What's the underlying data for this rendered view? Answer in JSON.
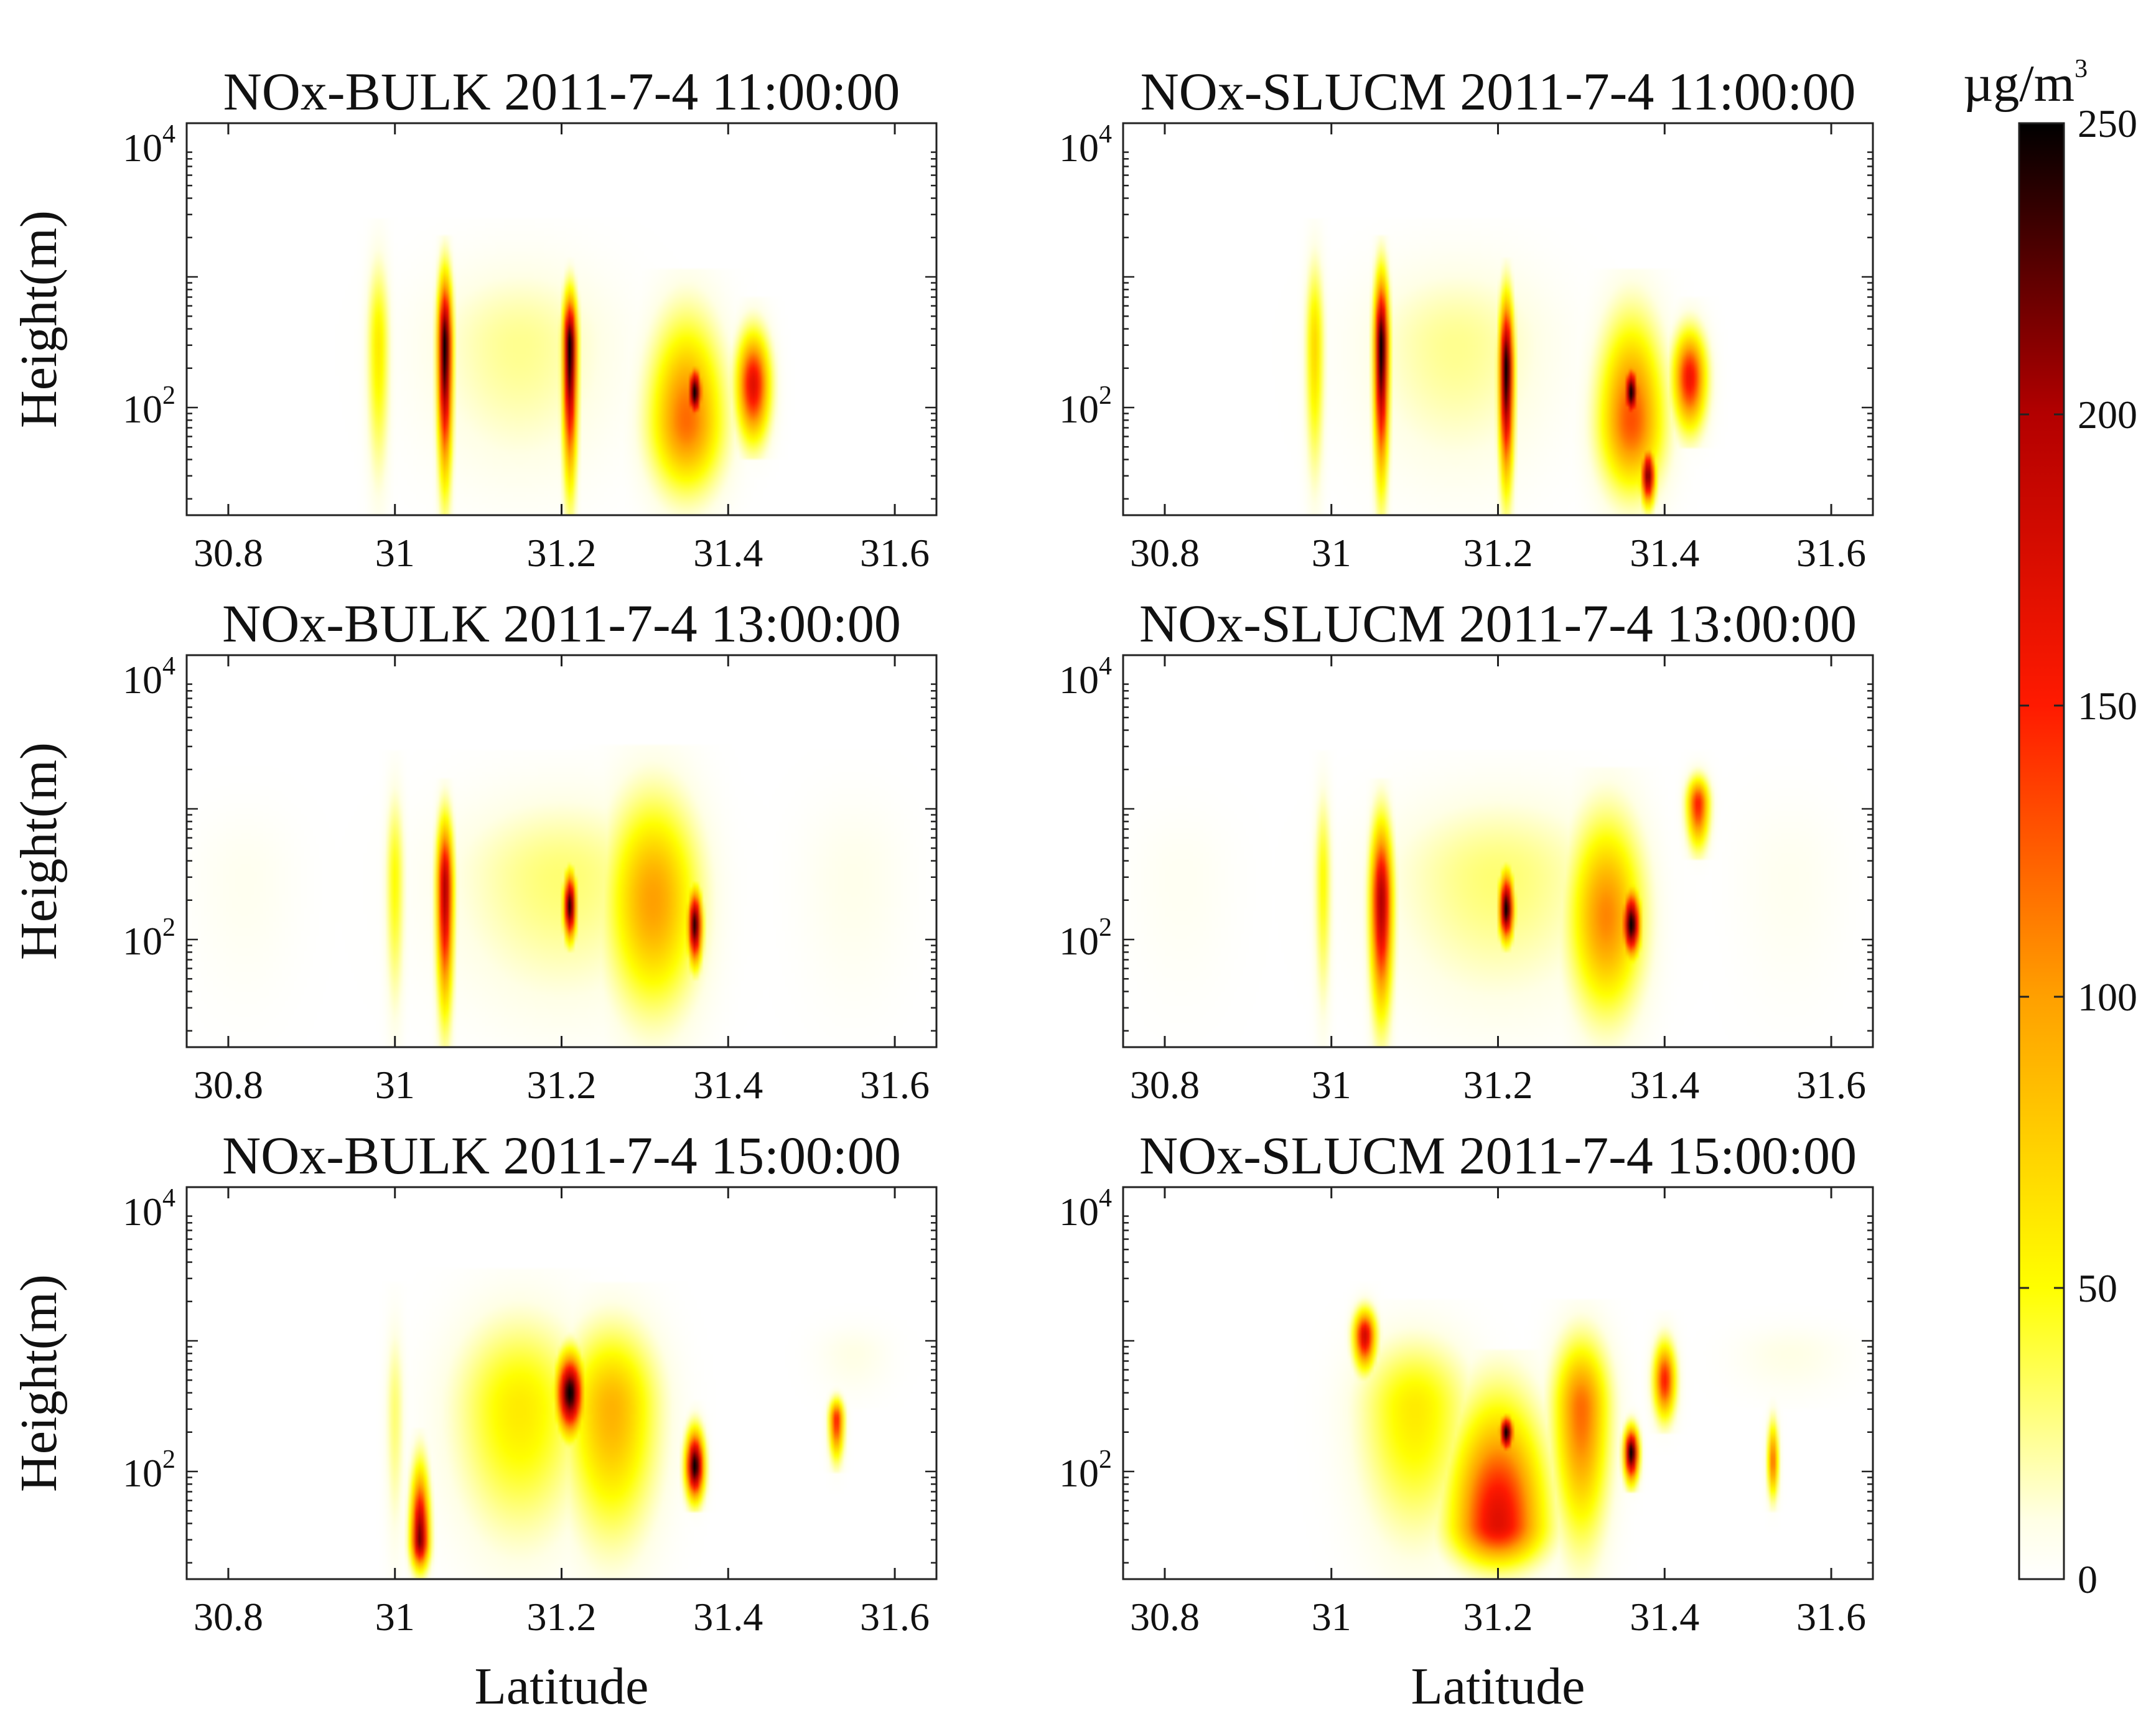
{
  "figure": {
    "colorbar": {
      "unit_base": "µg/m",
      "unit_exp": "3",
      "min": 0,
      "max": 250,
      "ticks": [
        0,
        50,
        100,
        150,
        200,
        250
      ],
      "tick_labels": [
        "0",
        "50",
        "100",
        "150",
        "200",
        "250"
      ],
      "colormap": "hot-reversed",
      "stops": [
        "#ffffff",
        "#ffffe6",
        "#ffff00",
        "#ffa000",
        "#ff1a00",
        "#b30000",
        "#000000"
      ]
    }
  },
  "chart_data": [
    {
      "type": "heatmap",
      "title": "NOx-BULK 2011-7-4 11:00:00",
      "xlabel": "",
      "ylabel": "Height(m)",
      "xlim": [
        30.75,
        31.65
      ],
      "ylim": [
        15,
        15000
      ],
      "yscale": "log",
      "xticks": [
        30.8,
        31,
        31.2,
        31.4,
        31.6
      ],
      "xtick_labels": [
        "30.8",
        "31",
        "31.2",
        "31.4",
        "31.6"
      ],
      "ytick_labels": [
        {
          "base": "10",
          "exp": "2"
        },
        {
          "base": "10",
          "exp": "4"
        }
      ],
      "plumes": [
        {
          "lat": 30.98,
          "width": 0.012,
          "top": 2000,
          "peak": 60,
          "bottom": 15,
          "peak_height": 300
        },
        {
          "lat": 31.06,
          "width": 0.008,
          "top": 1500,
          "peak": 250,
          "bottom": 15,
          "peak_height": 300
        },
        {
          "lat": 31.21,
          "width": 0.008,
          "top": 1000,
          "peak": 250,
          "bottom": 15,
          "peak_height": 300
        },
        {
          "lat": 31.35,
          "width": 0.04,
          "top": 800,
          "peak": 120,
          "bottom": 15,
          "peak_height": 80
        },
        {
          "lat": 31.36,
          "width": 0.008,
          "top": 250,
          "peak": 250,
          "bottom": 70,
          "peak_height": 130
        },
        {
          "lat": 31.43,
          "width": 0.018,
          "top": 500,
          "peak": 170,
          "bottom": 40,
          "peak_height": 150
        },
        {
          "lat": 31.15,
          "width": 0.1,
          "top": 2000,
          "peak": 25,
          "bottom": 15,
          "peak_height": 300
        }
      ]
    },
    {
      "type": "heatmap",
      "title": "NOx-SLUCM 2011-7-4 11:00:00",
      "xlabel": "",
      "ylabel": "",
      "xlim": [
        30.75,
        31.65
      ],
      "ylim": [
        15,
        15000
      ],
      "yscale": "log",
      "xticks": [
        30.8,
        31,
        31.2,
        31.4,
        31.6
      ],
      "xtick_labels": [
        "30.8",
        "31",
        "31.2",
        "31.4",
        "31.6"
      ],
      "ytick_labels": [
        {
          "base": "10",
          "exp": "2"
        },
        {
          "base": "10",
          "exp": "4"
        }
      ],
      "plumes": [
        {
          "lat": 30.98,
          "width": 0.01,
          "top": 2000,
          "peak": 70,
          "bottom": 15,
          "peak_height": 300
        },
        {
          "lat": 31.06,
          "width": 0.008,
          "top": 1500,
          "peak": 250,
          "bottom": 15,
          "peak_height": 300
        },
        {
          "lat": 31.21,
          "width": 0.008,
          "top": 1000,
          "peak": 250,
          "bottom": 15,
          "peak_height": 200
        },
        {
          "lat": 31.36,
          "width": 0.035,
          "top": 800,
          "peak": 130,
          "bottom": 15,
          "peak_height": 80
        },
        {
          "lat": 31.36,
          "width": 0.008,
          "top": 250,
          "peak": 250,
          "bottom": 70,
          "peak_height": 130
        },
        {
          "lat": 31.38,
          "width": 0.008,
          "top": 60,
          "peak": 220,
          "bottom": 15,
          "peak_height": 30
        },
        {
          "lat": 31.43,
          "width": 0.018,
          "top": 500,
          "peak": 160,
          "bottom": 50,
          "peak_height": 170
        },
        {
          "lat": 31.15,
          "width": 0.1,
          "top": 2000,
          "peak": 25,
          "bottom": 15,
          "peak_height": 300
        }
      ]
    },
    {
      "type": "heatmap",
      "title": "NOx-BULK 2011-7-4 13:00:00",
      "xlabel": "",
      "ylabel": "Height(m)",
      "xlim": [
        30.75,
        31.65
      ],
      "ylim": [
        15,
        15000
      ],
      "yscale": "log",
      "xticks": [
        30.8,
        31,
        31.2,
        31.4,
        31.6
      ],
      "xtick_labels": [
        "30.8",
        "31",
        "31.2",
        "31.4",
        "31.6"
      ],
      "ytick_labels": [
        {
          "base": "10",
          "exp": "2"
        },
        {
          "base": "10",
          "exp": "4"
        }
      ],
      "plumes": [
        {
          "lat": 30.82,
          "width": 0.06,
          "top": 1500,
          "peak": 6,
          "bottom": 15,
          "peak_height": 300
        },
        {
          "lat": 31.0,
          "width": 0.01,
          "top": 2000,
          "peak": 50,
          "bottom": 15,
          "peak_height": 300
        },
        {
          "lat": 31.06,
          "width": 0.009,
          "top": 1200,
          "peak": 200,
          "bottom": 15,
          "peak_height": 250
        },
        {
          "lat": 31.21,
          "width": 0.007,
          "top": 400,
          "peak": 240,
          "bottom": 80,
          "peak_height": 180
        },
        {
          "lat": 31.31,
          "width": 0.05,
          "top": 2200,
          "peak": 100,
          "bottom": 15,
          "peak_height": 200
        },
        {
          "lat": 31.36,
          "width": 0.008,
          "top": 300,
          "peak": 240,
          "bottom": 50,
          "peak_height": 130
        },
        {
          "lat": 31.55,
          "width": 0.06,
          "top": 2000,
          "peak": 8,
          "bottom": 15,
          "peak_height": 300
        },
        {
          "lat": 31.2,
          "width": 0.12,
          "top": 2000,
          "peak": 30,
          "bottom": 15,
          "peak_height": 300
        }
      ]
    },
    {
      "type": "heatmap",
      "title": "NOx-SLUCM 2011-7-4 13:00:00",
      "xlabel": "",
      "ylabel": "",
      "xlim": [
        30.75,
        31.65
      ],
      "ylim": [
        15,
        15000
      ],
      "yscale": "log",
      "xticks": [
        30.8,
        31,
        31.2,
        31.4,
        31.6
      ],
      "xtick_labels": [
        "30.8",
        "31",
        "31.2",
        "31.4",
        "31.6"
      ],
      "ytick_labels": [
        {
          "base": "10",
          "exp": "2"
        },
        {
          "base": "10",
          "exp": "4"
        }
      ],
      "plumes": [
        {
          "lat": 30.82,
          "width": 0.06,
          "top": 1500,
          "peak": 5,
          "bottom": 15,
          "peak_height": 300
        },
        {
          "lat": 30.99,
          "width": 0.009,
          "top": 2000,
          "peak": 50,
          "bottom": 15,
          "peak_height": 300
        },
        {
          "lat": 31.06,
          "width": 0.012,
          "top": 1200,
          "peak": 200,
          "bottom": 15,
          "peak_height": 200
        },
        {
          "lat": 31.21,
          "width": 0.008,
          "top": 400,
          "peak": 250,
          "bottom": 80,
          "peak_height": 170
        },
        {
          "lat": 31.33,
          "width": 0.04,
          "top": 1500,
          "peak": 110,
          "bottom": 15,
          "peak_height": 150
        },
        {
          "lat": 31.36,
          "width": 0.01,
          "top": 300,
          "peak": 250,
          "bottom": 60,
          "peak_height": 130
        },
        {
          "lat": 31.44,
          "width": 0.012,
          "top": 2000,
          "peak": 150,
          "bottom": 400,
          "peak_height": 1100
        },
        {
          "lat": 31.55,
          "width": 0.06,
          "top": 2000,
          "peak": 6,
          "bottom": 15,
          "peak_height": 300
        },
        {
          "lat": 31.2,
          "width": 0.12,
          "top": 2000,
          "peak": 30,
          "bottom": 15,
          "peak_height": 300
        }
      ]
    },
    {
      "type": "heatmap",
      "title": "NOx-BULK 2011-7-4 15:00:00",
      "xlabel": "Latitude",
      "ylabel": "Height(m)",
      "xlim": [
        30.75,
        31.65
      ],
      "ylim": [
        15,
        15000
      ],
      "yscale": "log",
      "xticks": [
        30.8,
        31,
        31.2,
        31.4,
        31.6
      ],
      "xtick_labels": [
        "30.8",
        "31",
        "31.2",
        "31.4",
        "31.6"
      ],
      "ytick_labels": [
        {
          "base": "10",
          "exp": "2"
        },
        {
          "base": "10",
          "exp": "4"
        }
      ],
      "plumes": [
        {
          "lat": 31.0,
          "width": 0.01,
          "top": 2000,
          "peak": 30,
          "bottom": 15,
          "peak_height": 300
        },
        {
          "lat": 31.03,
          "width": 0.01,
          "top": 150,
          "peak": 220,
          "bottom": 15,
          "peak_height": 30
        },
        {
          "lat": 31.15,
          "width": 0.07,
          "top": 2500,
          "peak": 60,
          "bottom": 15,
          "peak_height": 300
        },
        {
          "lat": 31.26,
          "width": 0.05,
          "top": 2000,
          "peak": 90,
          "bottom": 15,
          "peak_height": 300
        },
        {
          "lat": 31.21,
          "width": 0.015,
          "top": 1000,
          "peak": 250,
          "bottom": 150,
          "peak_height": 400
        },
        {
          "lat": 31.36,
          "width": 0.01,
          "top": 250,
          "peak": 250,
          "bottom": 50,
          "peak_height": 110
        },
        {
          "lat": 31.53,
          "width": 0.008,
          "top": 400,
          "peak": 150,
          "bottom": 100,
          "peak_height": 250
        },
        {
          "lat": 31.55,
          "width": 0.04,
          "top": 1500,
          "peak": 10,
          "bottom": 300,
          "peak_height": 800
        }
      ]
    },
    {
      "type": "heatmap",
      "title": "NOx-SLUCM 2011-7-4 15:00:00",
      "xlabel": "Latitude",
      "ylabel": "",
      "xlim": [
        30.75,
        31.65
      ],
      "ylim": [
        15,
        15000
      ],
      "yscale": "log",
      "xticks": [
        30.8,
        31,
        31.2,
        31.4,
        31.6
      ],
      "xtick_labels": [
        "30.8",
        "31",
        "31.2",
        "31.4",
        "31.6"
      ],
      "ytick_labels": [
        {
          "base": "10",
          "exp": "2"
        },
        {
          "base": "10",
          "exp": "4"
        }
      ],
      "plumes": [
        {
          "lat": 31.04,
          "width": 0.012,
          "top": 2000,
          "peak": 180,
          "bottom": 500,
          "peak_height": 1100
        },
        {
          "lat": 31.1,
          "width": 0.06,
          "top": 1500,
          "peak": 60,
          "bottom": 15,
          "peak_height": 300
        },
        {
          "lat": 31.2,
          "width": 0.05,
          "top": 600,
          "peak": 170,
          "bottom": 15,
          "peak_height": 40
        },
        {
          "lat": 31.21,
          "width": 0.008,
          "top": 300,
          "peak": 250,
          "bottom": 120,
          "peak_height": 200
        },
        {
          "lat": 31.3,
          "width": 0.03,
          "top": 1500,
          "peak": 120,
          "bottom": 15,
          "peak_height": 300
        },
        {
          "lat": 31.36,
          "width": 0.008,
          "top": 250,
          "peak": 250,
          "bottom": 70,
          "peak_height": 140
        },
        {
          "lat": 31.4,
          "width": 0.012,
          "top": 1200,
          "peak": 150,
          "bottom": 200,
          "peak_height": 500
        },
        {
          "lat": 31.53,
          "width": 0.006,
          "top": 300,
          "peak": 120,
          "bottom": 50,
          "peak_height": 120
        },
        {
          "lat": 31.55,
          "width": 0.06,
          "top": 1500,
          "peak": 10,
          "bottom": 300,
          "peak_height": 800
        }
      ]
    }
  ]
}
